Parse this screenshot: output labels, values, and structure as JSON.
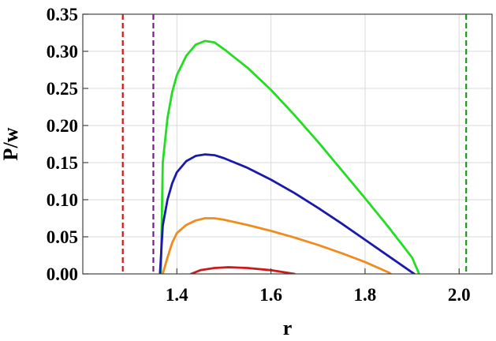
{
  "chart_data": {
    "type": "line",
    "xlabel": "r",
    "ylabel": "P/w",
    "xlim": [
      1.2,
      2.07
    ],
    "ylim": [
      0,
      0.35
    ],
    "x_ticks": [
      1.4,
      1.6,
      1.8,
      2.0
    ],
    "x_tick_labels": [
      "1.4",
      "1.6",
      "1.8",
      "2.0"
    ],
    "y_ticks": [
      0,
      0.05,
      0.1,
      0.15,
      0.2,
      0.25,
      0.3,
      0.35
    ],
    "y_tick_labels": [
      "0.00",
      "0.05",
      "0.10",
      "0.15",
      "0.20",
      "0.25",
      "0.30",
      "0.35"
    ],
    "grid": true,
    "series": [
      {
        "color": "#22dd22",
        "points": [
          [
            1.366,
            0.0
          ],
          [
            1.37,
            0.15
          ],
          [
            1.38,
            0.21
          ],
          [
            1.39,
            0.245
          ],
          [
            1.4,
            0.268
          ],
          [
            1.42,
            0.294
          ],
          [
            1.44,
            0.309
          ],
          [
            1.46,
            0.314
          ],
          [
            1.48,
            0.312
          ],
          [
            1.5,
            0.303
          ],
          [
            1.55,
            0.278
          ],
          [
            1.6,
            0.248
          ],
          [
            1.65,
            0.214
          ],
          [
            1.7,
            0.178
          ],
          [
            1.75,
            0.14
          ],
          [
            1.8,
            0.102
          ],
          [
            1.85,
            0.063
          ],
          [
            1.9,
            0.022
          ],
          [
            1.915,
            0.0
          ]
        ]
      },
      {
        "color": "#1a1aaa",
        "points": [
          [
            1.364,
            0.0
          ],
          [
            1.37,
            0.065
          ],
          [
            1.38,
            0.1
          ],
          [
            1.39,
            0.122
          ],
          [
            1.4,
            0.137
          ],
          [
            1.42,
            0.152
          ],
          [
            1.44,
            0.159
          ],
          [
            1.46,
            0.161
          ],
          [
            1.48,
            0.16
          ],
          [
            1.5,
            0.156
          ],
          [
            1.55,
            0.143
          ],
          [
            1.6,
            0.127
          ],
          [
            1.65,
            0.109
          ],
          [
            1.7,
            0.089
          ],
          [
            1.75,
            0.068
          ],
          [
            1.8,
            0.046
          ],
          [
            1.85,
            0.024
          ],
          [
            1.9,
            0.002
          ],
          [
            1.905,
            0.0
          ]
        ]
      },
      {
        "color": "#f08c1e",
        "points": [
          [
            1.37,
            0.0
          ],
          [
            1.38,
            0.022
          ],
          [
            1.39,
            0.042
          ],
          [
            1.4,
            0.055
          ],
          [
            1.42,
            0.066
          ],
          [
            1.44,
            0.072
          ],
          [
            1.46,
            0.075
          ],
          [
            1.48,
            0.075
          ],
          [
            1.5,
            0.073
          ],
          [
            1.55,
            0.066
          ],
          [
            1.6,
            0.058
          ],
          [
            1.65,
            0.049
          ],
          [
            1.7,
            0.039
          ],
          [
            1.75,
            0.028
          ],
          [
            1.8,
            0.016
          ],
          [
            1.85,
            0.002
          ],
          [
            1.855,
            0.0
          ]
        ]
      },
      {
        "color": "#cc1a1a",
        "points": [
          [
            1.43,
            0.0
          ],
          [
            1.45,
            0.005
          ],
          [
            1.48,
            0.008
          ],
          [
            1.51,
            0.009
          ],
          [
            1.55,
            0.008
          ],
          [
            1.6,
            0.005
          ],
          [
            1.65,
            0.0
          ]
        ]
      }
    ],
    "vertical_lines": [
      {
        "x": 1.285,
        "color": "#cc1a1a",
        "style": "dashed"
      },
      {
        "x": 1.35,
        "color": "#7a1a8a",
        "style": "dashed"
      },
      {
        "x": 2.015,
        "color": "#1a9a1a",
        "style": "dashed"
      }
    ]
  }
}
